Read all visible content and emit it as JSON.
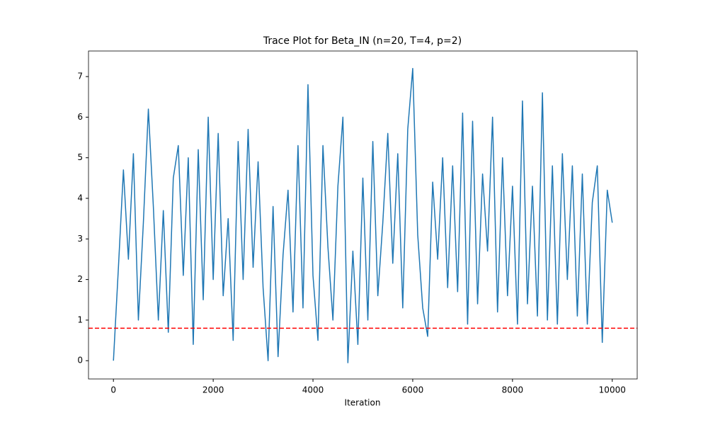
{
  "chart_data": {
    "type": "line",
    "title": "Trace Plot for Beta_IN (n=20, T=4, p=2)",
    "xlabel": "Iteration",
    "x": [
      0,
      100,
      200,
      300,
      400,
      500,
      600,
      700,
      800,
      900,
      1000,
      1100,
      1200,
      1300,
      1400,
      1500,
      1600,
      1700,
      1800,
      1900,
      2000,
      2100,
      2200,
      2300,
      2400,
      2500,
      2600,
      2700,
      2800,
      2900,
      3000,
      3100,
      3200,
      3300,
      3400,
      3500,
      3600,
      3700,
      3800,
      3900,
      4000,
      4100,
      4200,
      4300,
      4400,
      4500,
      4600,
      4700,
      4800,
      4900,
      5000,
      5100,
      5200,
      5300,
      5400,
      5500,
      5600,
      5700,
      5800,
      5900,
      6000,
      6100,
      6200,
      6300,
      6400,
      6500,
      6600,
      6700,
      6800,
      6900,
      7000,
      7100,
      7200,
      7300,
      7400,
      7500,
      7600,
      7700,
      7800,
      7900,
      8000,
      8100,
      8200,
      8300,
      8400,
      8500,
      8600,
      8700,
      8800,
      8900,
      9000,
      9100,
      9200,
      9300,
      9400,
      9500,
      9600,
      9700,
      9800,
      9900,
      10000
    ],
    "values": [
      0,
      2.3,
      4.7,
      2.5,
      5.1,
      1.0,
      3.4,
      6.2,
      3.8,
      1.0,
      3.7,
      0.7,
      4.5,
      5.3,
      2.1,
      5.0,
      0.4,
      5.2,
      1.5,
      6.0,
      2.0,
      5.6,
      1.6,
      3.5,
      0.5,
      5.4,
      2.0,
      5.7,
      2.3,
      4.9,
      1.8,
      0.0,
      3.8,
      0.1,
      2.6,
      4.2,
      1.2,
      5.3,
      1.3,
      6.8,
      2.1,
      0.5,
      5.3,
      2.8,
      1.0,
      4.3,
      6.0,
      -0.05,
      2.7,
      0.4,
      4.5,
      1.0,
      5.4,
      1.6,
      3.4,
      5.6,
      2.4,
      5.1,
      1.3,
      5.7,
      7.2,
      3.1,
      1.3,
      0.6,
      4.4,
      2.5,
      5.0,
      1.8,
      4.8,
      1.7,
      6.1,
      0.9,
      5.9,
      1.4,
      4.6,
      2.7,
      6.0,
      1.2,
      5.0,
      1.6,
      4.3,
      0.9,
      6.4,
      1.4,
      4.3,
      1.1,
      6.6,
      1.0,
      4.8,
      0.9,
      5.1,
      2.0,
      4.8,
      1.1,
      4.6,
      0.9,
      3.9,
      4.8,
      0.45,
      4.2,
      3.4
    ],
    "color": "#1f77b4",
    "hline": {
      "value": 0.8,
      "color": "#ff0000",
      "style": "dashed"
    },
    "xlim": [
      -500,
      10500
    ],
    "xticks": [
      0,
      2000,
      4000,
      6000,
      8000,
      10000
    ],
    "ylim": [
      -0.45,
      7.63
    ],
    "yticks": [
      0,
      1,
      2,
      3,
      4,
      5,
      6,
      7
    ]
  }
}
